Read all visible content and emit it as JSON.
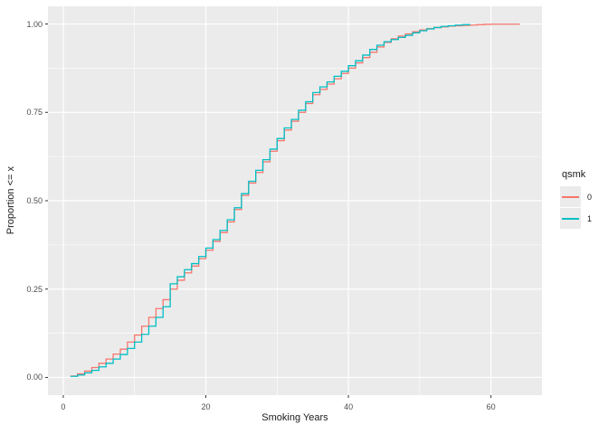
{
  "figure": {
    "background": "#FFFFFF"
  },
  "chart_data": {
    "type": "line",
    "variant": "ecdf-step",
    "title": "",
    "xlabel": "Smoking Years",
    "ylabel": "Proportion <= x",
    "xlim": [
      -2.15,
      67.15
    ],
    "ylim": [
      -0.05,
      1.05
    ],
    "grid": true,
    "x_tick_values": [
      0,
      20,
      40,
      60
    ],
    "x_tick_labels": [
      "0",
      "20",
      "40",
      "60"
    ],
    "x_minor_gridlines": [
      10,
      30,
      50
    ],
    "y_tick_values": [
      0,
      0.25,
      0.5,
      0.75,
      1.0
    ],
    "y_tick_labels": [
      "0.00",
      "0.25",
      "0.50",
      "0.75",
      "1.00"
    ],
    "y_minor_gridlines": [
      0.125,
      0.375,
      0.625,
      0.875
    ],
    "legend": {
      "title": "qsmk",
      "position": "right",
      "entries": [
        {
          "label": "0",
          "color": "#F8766D"
        },
        {
          "label": "1",
          "color": "#00BFC4"
        }
      ]
    },
    "series": [
      {
        "name": "0",
        "color": "#F8766D",
        "x": [
          1,
          2,
          3,
          4,
          5,
          6,
          7,
          8,
          9,
          10,
          11,
          12,
          13,
          14,
          15,
          16,
          17,
          18,
          19,
          20,
          21,
          22,
          23,
          24,
          25,
          26,
          27,
          28,
          29,
          30,
          31,
          32,
          33,
          34,
          35,
          36,
          37,
          38,
          39,
          40,
          41,
          42,
          43,
          44,
          45,
          46,
          47,
          48,
          49,
          50,
          51,
          52,
          53,
          54,
          55,
          56,
          57,
          58,
          59,
          60,
          64
        ],
        "y": [
          0.004,
          0.01,
          0.018,
          0.028,
          0.04,
          0.052,
          0.066,
          0.08,
          0.1,
          0.12,
          0.145,
          0.17,
          0.195,
          0.22,
          0.25,
          0.275,
          0.296,
          0.315,
          0.336,
          0.36,
          0.385,
          0.41,
          0.44,
          0.475,
          0.515,
          0.55,
          0.58,
          0.61,
          0.64,
          0.67,
          0.7,
          0.725,
          0.75,
          0.775,
          0.8,
          0.815,
          0.83,
          0.845,
          0.86,
          0.875,
          0.89,
          0.905,
          0.92,
          0.935,
          0.948,
          0.958,
          0.966,
          0.972,
          0.978,
          0.983,
          0.987,
          0.99,
          0.992,
          0.994,
          0.995,
          0.996,
          0.997,
          0.998,
          0.999,
          0.9995,
          1.0
        ]
      },
      {
        "name": "1",
        "color": "#00BFC4",
        "x": [
          1,
          2,
          3,
          4,
          5,
          6,
          7,
          8,
          9,
          10,
          11,
          12,
          13,
          14,
          15,
          16,
          17,
          18,
          19,
          20,
          21,
          22,
          23,
          24,
          25,
          26,
          27,
          28,
          29,
          30,
          31,
          32,
          33,
          34,
          35,
          36,
          37,
          38,
          39,
          40,
          41,
          42,
          43,
          44,
          45,
          46,
          47,
          48,
          49,
          50,
          51,
          52,
          53,
          54,
          55,
          56,
          57
        ],
        "y": [
          0.003,
          0.007,
          0.013,
          0.02,
          0.03,
          0.04,
          0.052,
          0.065,
          0.082,
          0.1,
          0.122,
          0.145,
          0.17,
          0.2,
          0.265,
          0.285,
          0.305,
          0.322,
          0.342,
          0.366,
          0.39,
          0.416,
          0.446,
          0.48,
          0.52,
          0.555,
          0.586,
          0.616,
          0.646,
          0.676,
          0.706,
          0.73,
          0.756,
          0.78,
          0.806,
          0.822,
          0.836,
          0.852,
          0.866,
          0.882,
          0.896,
          0.912,
          0.928,
          0.94,
          0.95,
          0.956,
          0.962,
          0.968,
          0.975,
          0.981,
          0.986,
          0.99,
          0.993,
          0.995,
          0.997,
          0.998,
          1.0
        ]
      }
    ],
    "colors": {
      "panel_background": "#EBEBEB",
      "grid": "#FFFFFF",
      "axis_text": "#4D4D4D",
      "axis_title": "#1A1A1A",
      "tick_mark": "#333333",
      "legend_key_background": "#EBEBEB",
      "figure_background": "#FFFFFF"
    }
  }
}
